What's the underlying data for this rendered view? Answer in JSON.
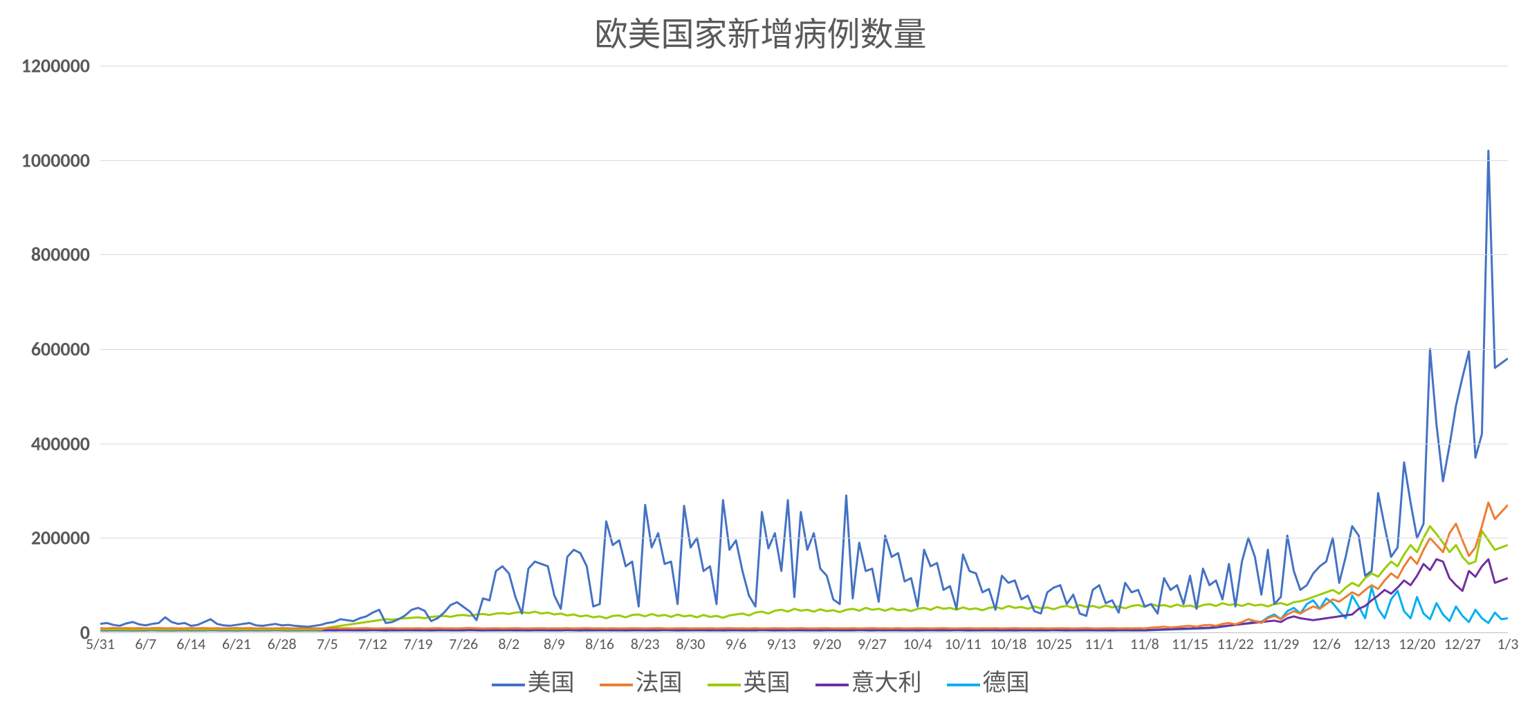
{
  "chart": {
    "type": "line",
    "title": "欧美国家新增病例数量",
    "title_fontsize": 48,
    "title_color": "#595959",
    "background_color": "#ffffff",
    "grid_color": "#d9d9d9",
    "axis_color": "#bfbfbf",
    "label_color": "#595959",
    "y_label_fontsize": 28,
    "x_label_fontsize": 22,
    "legend_fontsize": 34,
    "line_width": 3,
    "ylim": [
      0,
      1200000
    ],
    "ytick_step": 200000,
    "yticks": [
      0,
      200000,
      400000,
      600000,
      800000,
      1000000,
      1200000
    ],
    "xticks": [
      "5/31",
      "6/7",
      "6/14",
      "6/21",
      "6/28",
      "7/5",
      "7/12",
      "7/19",
      "7/26",
      "8/2",
      "8/9",
      "8/16",
      "8/23",
      "8/30",
      "9/6",
      "9/13",
      "9/20",
      "9/27",
      "10/4",
      "10/11",
      "10/18",
      "10/25",
      "11/1",
      "11/8",
      "11/15",
      "11/22",
      "11/29",
      "12/6",
      "12/13",
      "12/20",
      "12/27",
      "1/3"
    ],
    "xtick_interval": 7,
    "n_points": 218,
    "series": [
      {
        "name": "美国",
        "color": "#4472c4",
        "values": [
          18000,
          20000,
          16000,
          14000,
          19000,
          22000,
          17000,
          15000,
          18000,
          20000,
          32000,
          22000,
          18000,
          20000,
          14000,
          16000,
          22000,
          28000,
          18000,
          15000,
          14000,
          16000,
          18000,
          20000,
          15000,
          14000,
          16000,
          18000,
          15000,
          16000,
          14000,
          13000,
          12000,
          14000,
          16000,
          20000,
          22000,
          28000,
          26000,
          24000,
          30000,
          34000,
          42000,
          48000,
          20000,
          22000,
          28000,
          36000,
          48000,
          52000,
          46000,
          24000,
          30000,
          42000,
          58000,
          64000,
          54000,
          44000,
          26000,
          72000,
          68000,
          130000,
          140000,
          125000,
          75000,
          40000,
          135000,
          150000,
          145000,
          140000,
          78000,
          50000,
          160000,
          175000,
          168000,
          140000,
          55000,
          60000,
          235000,
          185000,
          195000,
          140000,
          150000,
          55000,
          270000,
          180000,
          210000,
          145000,
          150000,
          60000,
          268000,
          180000,
          200000,
          130000,
          140000,
          60000,
          280000,
          175000,
          195000,
          130000,
          78000,
          55000,
          255000,
          178000,
          210000,
          130000,
          280000,
          75000,
          255000,
          175000,
          210000,
          135000,
          120000,
          70000,
          60000,
          290000,
          72000,
          190000,
          130000,
          135000,
          65000,
          205000,
          160000,
          168000,
          108000,
          115000,
          55000,
          175000,
          140000,
          147000,
          90000,
          98000,
          50000,
          165000,
          130000,
          125000,
          85000,
          92000,
          48000,
          120000,
          105000,
          110000,
          70000,
          78000,
          45000,
          40000,
          85000,
          95000,
          100000,
          60000,
          80000,
          40000,
          35000,
          90000,
          100000,
          62000,
          68000,
          42000,
          105000,
          85000,
          90000,
          55000,
          60000,
          40000,
          115000,
          90000,
          100000,
          60000,
          120000,
          50000,
          135000,
          100000,
          110000,
          70000,
          145000,
          55000,
          150000,
          200000,
          160000,
          80000,
          175000,
          60000,
          75000,
          205000,
          130000,
          90000,
          100000,
          125000,
          140000,
          150000,
          200000,
          105000,
          160000,
          225000,
          205000,
          120000,
          130000,
          295000,
          225000,
          160000,
          180000,
          360000,
          275000,
          200000,
          230000,
          600000,
          440000,
          320000,
          395000,
          480000,
          540000,
          595000,
          370000,
          420000,
          1020000,
          560000,
          570000,
          580000
        ]
      },
      {
        "name": "法国",
        "color": "#ed7d31",
        "values": [
          9000,
          8500,
          9500,
          8800,
          9200,
          8700,
          9100,
          8400,
          8900,
          9300,
          8600,
          9000,
          8500,
          8800,
          9400,
          8700,
          9200,
          8600,
          9000,
          8400,
          8800,
          9300,
          8700,
          9100,
          8500,
          8900,
          8400,
          8600,
          9200,
          8700,
          8500,
          9000,
          8600,
          8800,
          8400,
          8700,
          9100,
          8600,
          8900,
          8500,
          8800,
          9200,
          8600,
          8400,
          8700,
          9000,
          8500,
          8800,
          8600,
          8900,
          8400,
          8700,
          9100,
          8600,
          8800,
          8500,
          8900,
          9300,
          8700,
          8400,
          8600,
          9000,
          8500,
          8800,
          9200,
          8600,
          8400,
          8700,
          9000,
          8500,
          8800,
          8600,
          8900,
          8400,
          8700,
          9100,
          8600,
          8800,
          8500,
          8900,
          8400,
          8600,
          9000,
          8700,
          8500,
          8800,
          9200,
          8600,
          8400,
          8700,
          9000,
          8500,
          8800,
          8600,
          8900,
          8400,
          8700,
          9100,
          8600,
          8800,
          8500,
          8900,
          8400,
          8600,
          9000,
          8700,
          8500,
          8800,
          9200,
          8600,
          8400,
          8700,
          9000,
          8500,
          8800,
          8600,
          8900,
          8400,
          8700,
          9100,
          8600,
          8800,
          8500,
          8900,
          8400,
          8600,
          9000,
          8700,
          8500,
          8800,
          9200,
          8600,
          8400,
          8700,
          9000,
          8500,
          8800,
          8600,
          8900,
          8400,
          8700,
          9100,
          8600,
          8800,
          8500,
          8900,
          8400,
          8600,
          9000,
          8700,
          8500,
          8800,
          9200,
          8600,
          8400,
          8700,
          9000,
          8500,
          8800,
          8600,
          8900,
          8400,
          10000,
          11000,
          12000,
          10500,
          11500,
          13000,
          14000,
          12000,
          15000,
          16000,
          14000,
          18000,
          20000,
          17000,
          22000,
          28000,
          24000,
          20000,
          30000,
          35000,
          28000,
          38000,
          45000,
          40000,
          48000,
          55000,
          50000,
          60000,
          70000,
          65000,
          75000,
          85000,
          78000,
          90000,
          100000,
          92000,
          110000,
          125000,
          115000,
          140000,
          160000,
          145000,
          175000,
          200000,
          185000,
          170000,
          210000,
          230000,
          195000,
          162000,
          180000,
          225000,
          275000,
          240000,
          255000,
          270000
        ]
      },
      {
        "name": "英国",
        "color": "#a5a5a5",
        "values": [
          6000,
          5800,
          6200,
          5900,
          6100,
          5700,
          6000,
          5800,
          6300,
          5900,
          6100,
          5700,
          6000,
          6200,
          5800,
          6100,
          5900,
          6300,
          6000,
          5800,
          6100,
          5700,
          6000,
          6200,
          5900,
          6100,
          5800,
          6300,
          6000,
          5700,
          6100,
          5900,
          6200,
          6000,
          5800,
          10000,
          12000,
          14000,
          16000,
          18000,
          20000,
          22000,
          24000,
          26000,
          28000,
          27000,
          29000,
          30000,
          31000,
          32000,
          30000,
          33000,
          34000,
          35000,
          33000,
          36000,
          37000,
          35000,
          38000,
          39000,
          37000,
          40000,
          41000,
          39000,
          42000,
          43000,
          41000,
          44000,
          40000,
          42000,
          38000,
          40000,
          36000,
          38000,
          34000,
          36000,
          32000,
          34000,
          30000,
          35000,
          36000,
          32000,
          37000,
          38000,
          34000,
          39000,
          35000,
          37000,
          33000,
          38000,
          34000,
          36000,
          32000,
          37000,
          33000,
          35000,
          31000,
          36000,
          38000,
          40000,
          36000,
          42000,
          44000,
          40000,
          46000,
          48000,
          44000,
          50000,
          46000,
          48000,
          44000,
          49000,
          45000,
          47000,
          43000,
          48000,
          50000,
          46000,
          52000,
          48000,
          50000,
          46000,
          51000,
          47000,
          49000,
          45000,
          50000,
          52000,
          48000,
          54000,
          50000,
          52000,
          48000,
          53000,
          49000,
          51000,
          47000,
          52000,
          54000,
          50000,
          56000,
          52000,
          54000,
          50000,
          55000,
          51000,
          53000,
          49000,
          54000,
          56000,
          52000,
          58000,
          54000,
          56000,
          52000,
          57000,
          53000,
          55000,
          51000,
          56000,
          58000,
          54000,
          60000,
          56000,
          58000,
          54000,
          59000,
          55000,
          57000,
          53000,
          58000,
          60000,
          56000,
          62000,
          58000,
          60000,
          56000,
          61000,
          57000,
          59000,
          55000,
          60000,
          62000,
          58000,
          64000,
          66000,
          70000,
          75000,
          80000,
          85000,
          90000,
          82000,
          95000,
          105000,
          98000,
          115000,
          125000,
          118000,
          135000,
          150000,
          140000,
          165000,
          185000,
          170000,
          200000,
          225000,
          208000,
          190000,
          170000,
          185000,
          160000,
          145000,
          150000,
          215000,
          195000,
          175000,
          180000,
          185000
        ]
      },
      {
        "name": "意大利",
        "color": "#7030a0",
        "values": [
          5000,
          4800,
          5200,
          4900,
          5100,
          4700,
          5000,
          4800,
          5300,
          4900,
          5100,
          4700,
          5000,
          5200,
          4800,
          5100,
          4900,
          5300,
          5000,
          4800,
          5100,
          4700,
          5000,
          5200,
          4900,
          5100,
          4800,
          5300,
          5000,
          4700,
          5100,
          4900,
          5200,
          5000,
          4800,
          5100,
          4700,
          5000,
          5200,
          4900,
          5100,
          4800,
          5300,
          5000,
          4700,
          5100,
          4900,
          5200,
          5000,
          4800,
          5100,
          4700,
          5000,
          5200,
          4900,
          5100,
          4800,
          5300,
          5000,
          4700,
          5100,
          4900,
          5200,
          5000,
          4800,
          5100,
          4700,
          5000,
          5200,
          4900,
          5100,
          4800,
          5300,
          5000,
          4700,
          5100,
          4900,
          5200,
          5000,
          4800,
          5100,
          4700,
          5000,
          5200,
          4900,
          5100,
          4800,
          5300,
          5000,
          4700,
          5100,
          4900,
          5200,
          5000,
          4800,
          5100,
          4700,
          5000,
          5200,
          4900,
          5100,
          4800,
          5300,
          5000,
          4700,
          5100,
          4900,
          5200,
          5000,
          4800,
          5100,
          4700,
          5000,
          5200,
          4900,
          5100,
          4800,
          5300,
          5000,
          4700,
          5100,
          4900,
          5200,
          5000,
          4800,
          5100,
          4700,
          5000,
          5200,
          4900,
          5100,
          4800,
          5300,
          5000,
          4700,
          5100,
          4900,
          5200,
          5000,
          4800,
          5100,
          4700,
          5000,
          5200,
          4900,
          5100,
          4800,
          5300,
          5000,
          4700,
          5100,
          4900,
          5200,
          5000,
          4800,
          5100,
          4700,
          5000,
          5200,
          4900,
          5100,
          4800,
          5300,
          6000,
          6500,
          7000,
          7500,
          8000,
          8500,
          9000,
          9500,
          10000,
          11500,
          13000,
          14500,
          16000,
          17500,
          19000,
          20500,
          22000,
          23500,
          25000,
          22000,
          30000,
          34000,
          30000,
          28000,
          26000,
          28000,
          30000,
          32000,
          34000,
          36000,
          38000,
          50000,
          56000,
          68000,
          78000,
          90000,
          82000,
          95000,
          110000,
          100000,
          120000,
          145000,
          132000,
          155000,
          150000,
          115000,
          100000,
          88000,
          130000,
          118000,
          140000,
          155000,
          105000,
          110000,
          115000
        ]
      },
      {
        "name": "德国",
        "color": "#00b0f0",
        "values": [
          4000,
          3800,
          4200,
          3900,
          4100,
          3700,
          4000,
          3800,
          4300,
          3900,
          4100,
          3700,
          4000,
          4200,
          3800,
          4100,
          3900,
          4300,
          4000,
          3800,
          4100,
          3700,
          4000,
          4200,
          3900,
          4100,
          3800,
          4300,
          4000,
          3700,
          4100,
          3900,
          4200,
          4000,
          3800,
          4100,
          3700,
          4000,
          4200,
          3900,
          4100,
          3800,
          4300,
          4000,
          3700,
          4100,
          3900,
          4200,
          4000,
          3800,
          4100,
          3700,
          4000,
          4200,
          3900,
          4100,
          3800,
          4300,
          4000,
          3700,
          4100,
          3900,
          4200,
          4000,
          3800,
          4100,
          3700,
          4000,
          4200,
          3900,
          4100,
          3800,
          4300,
          4000,
          3700,
          4100,
          3900,
          4200,
          4000,
          3800,
          4100,
          3700,
          4000,
          4200,
          3900,
          4100,
          3800,
          4300,
          4000,
          3700,
          4100,
          3900,
          4200,
          4000,
          3800,
          4100,
          3700,
          4000,
          4200,
          3900,
          4100,
          3800,
          4300,
          4000,
          3700,
          4100,
          3900,
          4200,
          4000,
          3800,
          4100,
          3700,
          4000,
          4200,
          3900,
          4100,
          3800,
          4300,
          4000,
          3700,
          4100,
          3900,
          4200,
          4000,
          3800,
          4100,
          3700,
          4000,
          4200,
          3900,
          4100,
          3800,
          4300,
          4000,
          3700,
          4100,
          3900,
          4200,
          4000,
          3800,
          4100,
          3700,
          4000,
          4200,
          3900,
          4100,
          3800,
          4300,
          4000,
          3700,
          4100,
          3900,
          4200,
          4000,
          3800,
          4100,
          3700,
          4000,
          4200,
          3900,
          4100,
          3800,
          4300,
          5000,
          5500,
          6000,
          6500,
          7000,
          7500,
          8000,
          8500,
          9000,
          10000,
          12000,
          14000,
          16000,
          18000,
          20000,
          24000,
          22000,
          32000,
          38000,
          28000,
          45000,
          52000,
          40000,
          60000,
          68000,
          50000,
          72000,
          62000,
          45000,
          30000,
          78000,
          55000,
          30000,
          95000,
          50000,
          30000,
          70000,
          88000,
          45000,
          30000,
          75000,
          40000,
          28000,
          62000,
          38000,
          24000,
          55000,
          35000,
          22000,
          48000,
          30000,
          20000,
          42000,
          28000,
          30000
        ]
      }
    ],
    "legend": {
      "position": "bottom",
      "items": [
        "美国",
        "法国",
        "英国",
        "意大利",
        "德国"
      ]
    }
  }
}
